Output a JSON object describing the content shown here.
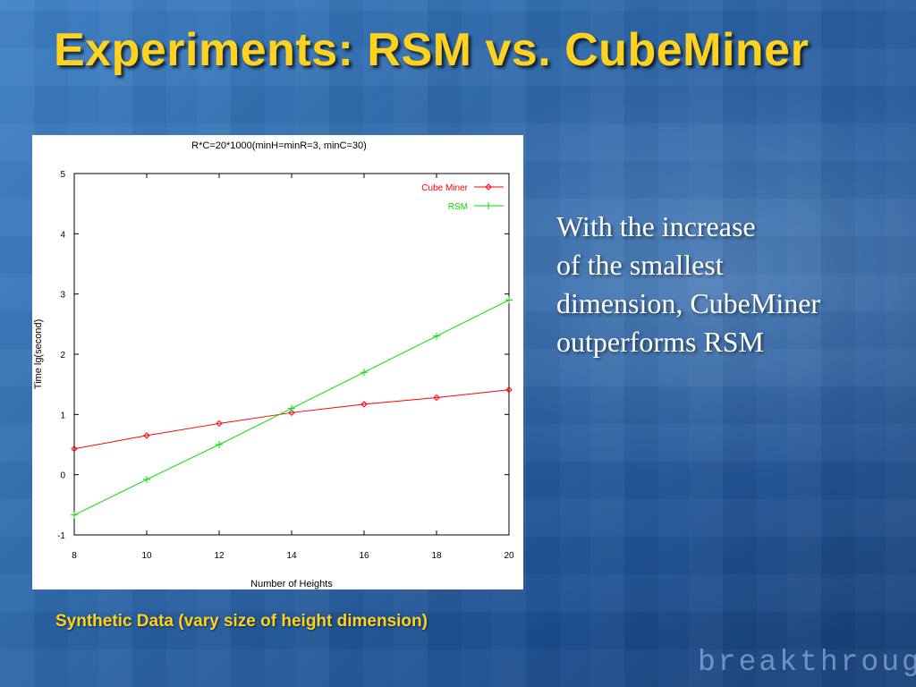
{
  "slide": {
    "title": "Experiments: RSM vs. CubeMiner",
    "side_text": [
      "With the increase",
      "of the smallest",
      "dimension, CubeMiner",
      "outperforms RSM"
    ],
    "caption": "Synthetic Data (vary size of height dimension)",
    "brand": "breakthrough"
  },
  "colors": {
    "title": "#ffd21f",
    "cube_miner": "#ff0000",
    "rsm": "#00e000"
  },
  "chart_data": {
    "type": "line",
    "title": "R*C=20*1000(minH=minR=3, minC=30)",
    "xlabel": "Number of Heights",
    "ylabel": "Time lg(second)",
    "xlim": [
      8,
      20
    ],
    "ylim": [
      -1,
      5
    ],
    "x_ticks": [
      8,
      10,
      12,
      14,
      16,
      18,
      20
    ],
    "y_ticks": [
      -1,
      0,
      1,
      2,
      3,
      4,
      5
    ],
    "legend_position": "top-right",
    "grid": false,
    "series": [
      {
        "name": "Cube Miner",
        "color": "#ff0000",
        "marker": "diamond",
        "x": [
          8,
          10,
          12,
          14,
          16,
          18,
          20
        ],
        "values": [
          0.43,
          0.65,
          0.85,
          1.03,
          1.17,
          1.28,
          1.41
        ]
      },
      {
        "name": "RSM",
        "color": "#00e000",
        "marker": "plus",
        "x": [
          8,
          10,
          12,
          14,
          16,
          18,
          20
        ],
        "values": [
          -0.67,
          -0.08,
          0.5,
          1.1,
          1.7,
          2.3,
          2.9
        ]
      }
    ]
  }
}
